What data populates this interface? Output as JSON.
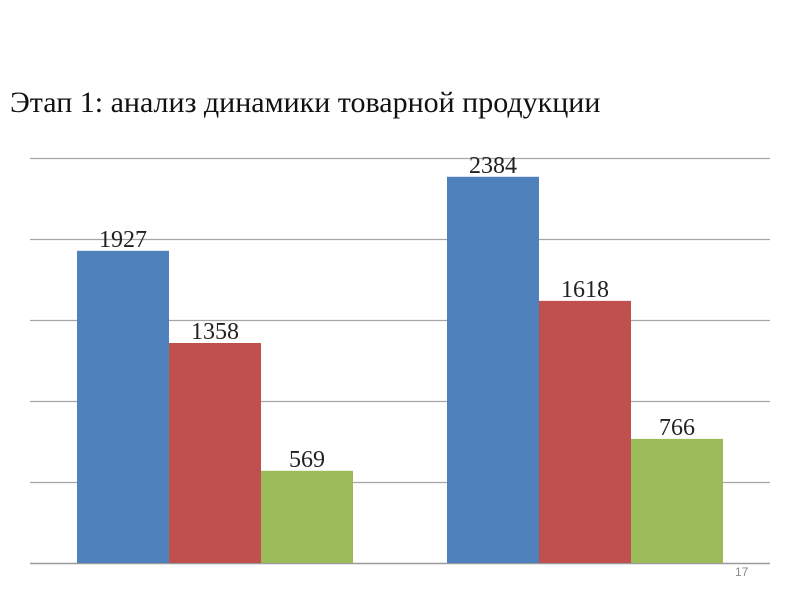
{
  "slide": {
    "title": "Этап 1: анализ динамики товарной продукции",
    "page_number": "17"
  },
  "chart_data": {
    "type": "bar",
    "title": "",
    "xlabel": "",
    "ylabel": "",
    "categories": [
      "",
      ""
    ],
    "ylim": [
      0,
      2500
    ],
    "grid": true,
    "legend": "none",
    "series": [
      {
        "values": [
          1927,
          2384
        ],
        "color": "#4F81BD"
      },
      {
        "values": [
          1358,
          1618
        ],
        "color": "#C0504D"
      },
      {
        "values": [
          569,
          766
        ],
        "color": "#9BBB59"
      }
    ],
    "data_labels": true
  }
}
